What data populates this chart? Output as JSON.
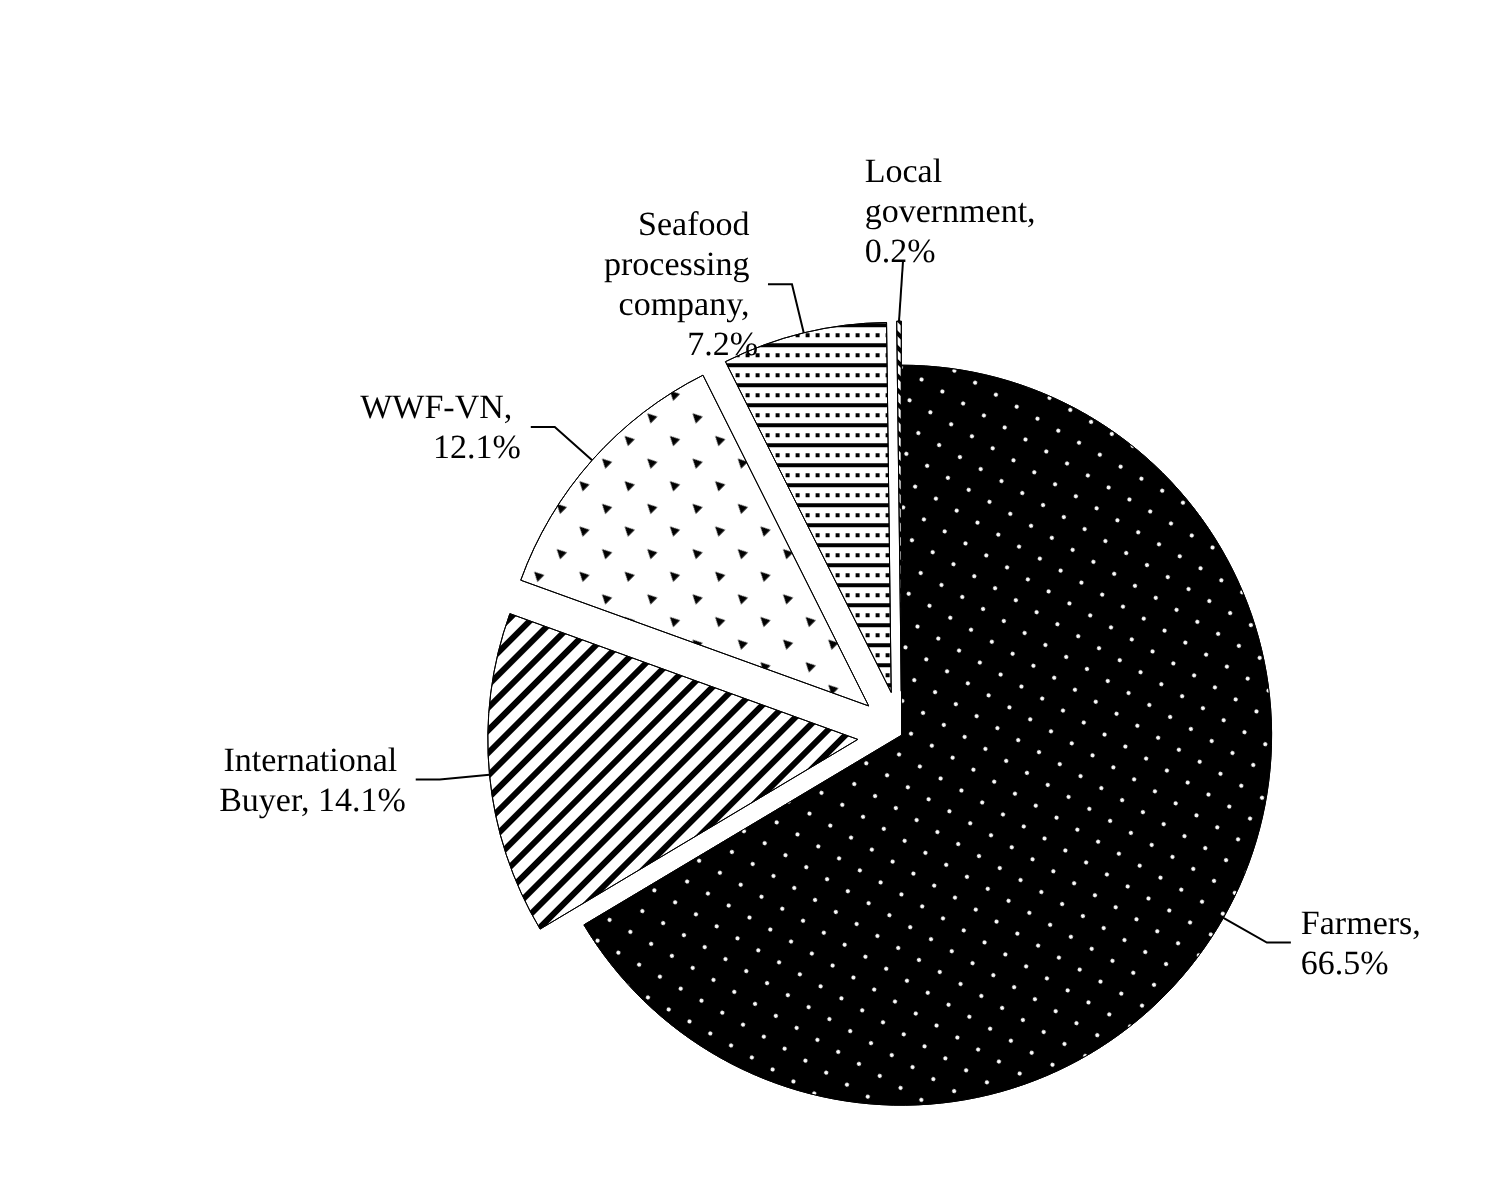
{
  "chart_data": {
    "type": "pie",
    "categories": [
      "Farmers, 66.5%",
      "International Buyer, 14.1%",
      "WWF-VN, 12.1%",
      "Seafood processing company, 7.2%",
      "Local government, 0.2%"
    ],
    "values": [
      66.5,
      14.1,
      12.1,
      7.2,
      0.2
    ],
    "colors": [
      "#000000",
      "#ffffff",
      "#ffffff",
      "#ffffff",
      "#ffffff"
    ]
  }
}
